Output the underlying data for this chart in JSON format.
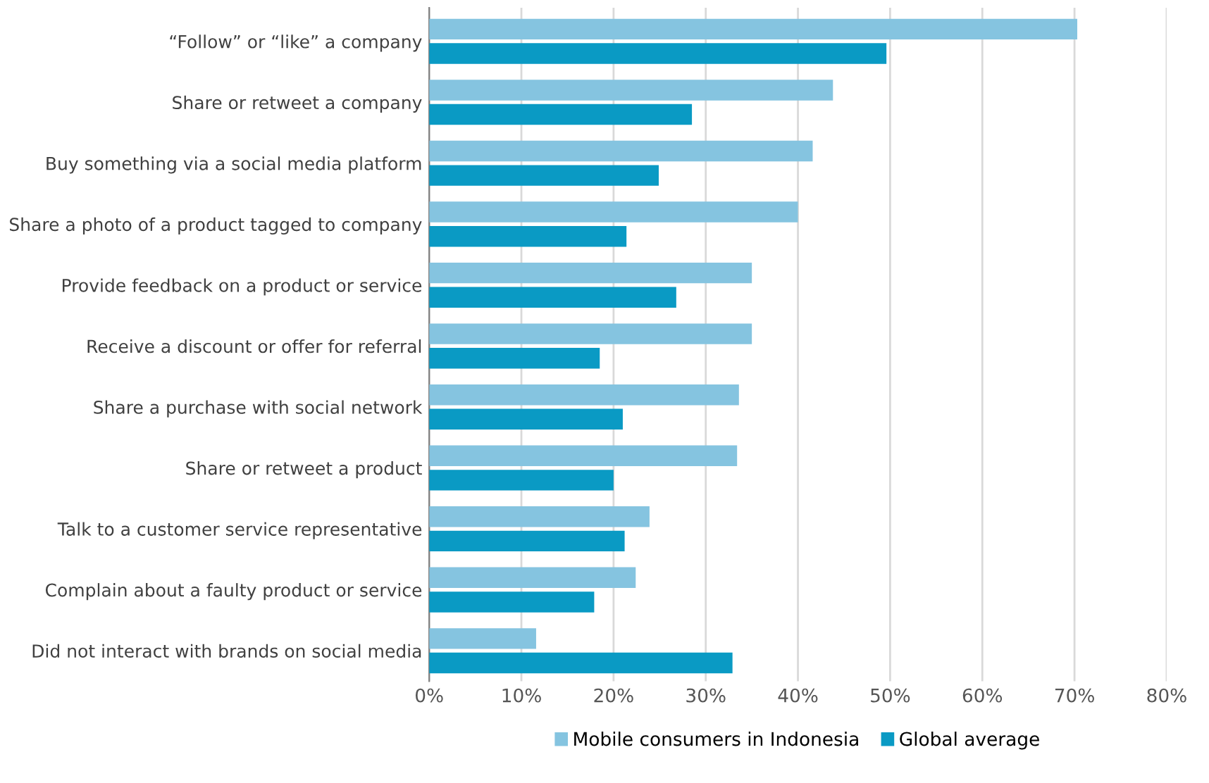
{
  "chart_data": {
    "type": "bar",
    "orientation": "horizontal",
    "categories": [
      "“Follow” or “like” a company",
      "Share or retweet a company",
      "Buy something via a social media platform",
      "Share a photo of a product tagged to company",
      "Provide feedback on a product or service",
      "Receive a discount or offer for referral",
      "Share a purchase with social network",
      "Share or retweet a product",
      "Talk to a customer service representative",
      "Complain about a faulty product or service",
      "Did not interact with brands on social media"
    ],
    "series": [
      {
        "name": "Mobile consumers in Indonesia",
        "color": "#85c4e0",
        "values": [
          70.3,
          43.8,
          41.6,
          40,
          35,
          35,
          33.6,
          33.4,
          23.9,
          22.4,
          11.6
        ]
      },
      {
        "name": "Global average",
        "color": "#0a9ac4",
        "values": [
          49.6,
          28.5,
          24.9,
          21.4,
          26.8,
          18.5,
          21,
          20,
          21.2,
          17.9,
          32.9
        ]
      }
    ],
    "xlim": [
      0,
      80
    ],
    "xticks": [
      {
        "value": 0,
        "label": "0%"
      },
      {
        "value": 10,
        "label": "10%"
      },
      {
        "value": 20,
        "label": "20%"
      },
      {
        "value": 30,
        "label": "30%"
      },
      {
        "value": 40,
        "label": "40%"
      },
      {
        "value": 50,
        "label": "50%"
      },
      {
        "value": 60,
        "label": "60%"
      },
      {
        "value": 70,
        "label": "70%"
      },
      {
        "value": 80,
        "label": "80%"
      }
    ],
    "grid": "x",
    "legend": "bottom"
  }
}
